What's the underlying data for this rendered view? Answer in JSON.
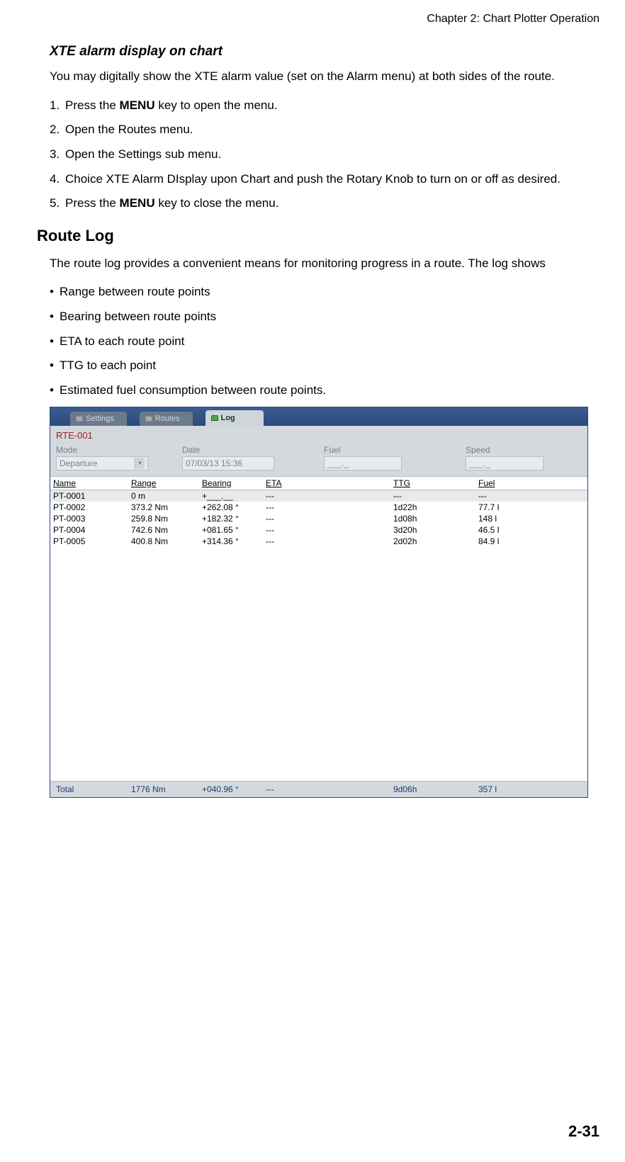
{
  "chapter_header": "Chapter 2: Chart Plotter Operation",
  "section1": {
    "title": "XTE alarm display on chart",
    "intro": "You may digitally show the XTE alarm value (set on the Alarm menu) at both sides of the route.",
    "steps": [
      {
        "pre": "Press the ",
        "bold": "MENU",
        "post": " key to open the menu."
      },
      {
        "pre": "Open the Routes menu.",
        "bold": "",
        "post": ""
      },
      {
        "pre": "Open the Settings sub menu.",
        "bold": "",
        "post": ""
      },
      {
        "pre": "Choice XTE Alarm DIsplay upon Chart and push the Rotary Knob to turn on or off as desired.",
        "bold": "",
        "post": ""
      },
      {
        "pre": "Press the ",
        "bold": "MENU",
        "post": " key to close the menu."
      }
    ]
  },
  "section2": {
    "title": "Route Log",
    "intro": "The route log provides a convenient means for monitoring progress in a route. The log shows",
    "bullets": [
      "Range between route points",
      "Bearing between route points",
      "ETA to each route point",
      "TTG to each point",
      "Estimated fuel consumption between route points."
    ]
  },
  "screenshot": {
    "tabs": {
      "settings": "Settings",
      "routes": "Routes",
      "log": "Log"
    },
    "route_name": "RTE-001",
    "fields": {
      "mode": {
        "label": "Mode",
        "value": "Departure"
      },
      "date": {
        "label": "Date",
        "value": "07/03/13 15:36"
      },
      "fuel": {
        "label": "Fuel",
        "value": "___._"
      },
      "speed": {
        "label": "Speed",
        "value": "___._"
      }
    },
    "columns": [
      "Name",
      "Range",
      "Bearing",
      "ETA",
      "TTG",
      "Fuel"
    ],
    "rows": [
      {
        "name": "PT-0001",
        "range": "0 m",
        "bearing": "+___.__",
        "eta": "---",
        "ttg": "---",
        "fuel": "---",
        "hl": true
      },
      {
        "name": "PT-0002",
        "range": "373.2 Nm",
        "bearing": "+262.08 °",
        "eta": "---",
        "ttg": "1d22h",
        "fuel": "77.7 l",
        "hl": false
      },
      {
        "name": "PT-0003",
        "range": "259.8 Nm",
        "bearing": "+182.32 °",
        "eta": "---",
        "ttg": "1d08h",
        "fuel": "148 l",
        "hl": false
      },
      {
        "name": "PT-0004",
        "range": "742.6 Nm",
        "bearing": "+081.65 °",
        "eta": "---",
        "ttg": "3d20h",
        "fuel": "46.5 l",
        "hl": false
      },
      {
        "name": "PT-0005",
        "range": "400.8 Nm",
        "bearing": "+314.36 °",
        "eta": "---",
        "ttg": "2d02h",
        "fuel": "84.9 l",
        "hl": false
      }
    ],
    "total": {
      "label": "Total",
      "range": "1776 Nm",
      "bearing": "+040.96 °",
      "eta": "---",
      "ttg": "9d06h",
      "fuel": "357 l"
    }
  },
  "page_number": "2-31"
}
